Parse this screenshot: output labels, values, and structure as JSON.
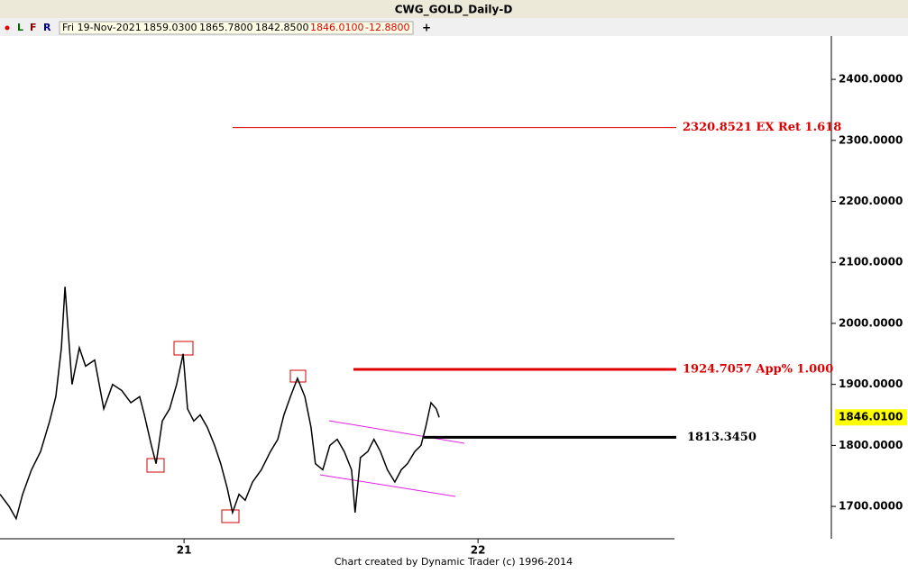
{
  "chart_data": {
    "type": "line",
    "title": "CWG_GOLD_Daily-D",
    "info": {
      "date": "Fri 19-Nov-2021",
      "open": "1859.0300",
      "high": "1865.7800",
      "low": "1842.8500",
      "close": "1846.0100",
      "change": "-12.8800",
      "buttons": [
        "L",
        "F",
        "R"
      ]
    },
    "footer": "Chart created by Dynamic Trader  (c) 1996-2014",
    "x": [
      2020.374,
      2020.405,
      2020.429,
      2020.451,
      2020.481,
      2020.512,
      2020.543,
      2020.564,
      2020.583,
      2020.595,
      2020.607,
      2020.619,
      2020.644,
      2020.665,
      2020.696,
      2020.727,
      2020.757,
      2020.788,
      2020.819,
      2020.849,
      2020.865,
      2020.889,
      2020.905,
      2020.926,
      2020.951,
      2020.975,
      2020.997,
      2021.012,
      2021.033,
      2021.055,
      2021.079,
      2021.104,
      2021.125,
      2021.147,
      2021.165,
      2021.187,
      2021.208,
      2021.233,
      2021.263,
      2021.294,
      2021.319,
      2021.34,
      2021.362,
      2021.386,
      2021.411,
      2021.432,
      2021.447,
      2021.472,
      2021.496,
      2021.521,
      2021.545,
      2021.57,
      2021.582,
      2021.6,
      2021.625,
      2021.646,
      2021.668,
      2021.692,
      2021.717,
      2021.739,
      2021.76,
      2021.785,
      2021.806,
      2021.822,
      2021.84,
      2021.858,
      2021.868
    ],
    "series": [
      {
        "name": "CWG_GOLD",
        "color": "#000000",
        "values": [
          1720,
          1700,
          1680,
          1720,
          1760,
          1790,
          1840,
          1880,
          1960,
          2060,
          1980,
          1900,
          1960,
          1930,
          1940,
          1860,
          1900,
          1890,
          1870,
          1880,
          1850,
          1800,
          1770,
          1840,
          1860,
          1900,
          1950,
          1860,
          1840,
          1850,
          1830,
          1800,
          1770,
          1730,
          1690,
          1720,
          1710,
          1740,
          1760,
          1790,
          1810,
          1850,
          1880,
          1910,
          1880,
          1830,
          1770,
          1760,
          1800,
          1810,
          1790,
          1760,
          1690,
          1780,
          1790,
          1810,
          1790,
          1760,
          1740,
          1760,
          1770,
          1790,
          1800,
          1830,
          1870,
          1860,
          1846.01
        ]
      }
    ],
    "levels": [
      {
        "value": 2320.8521,
        "label": "2320.8521 EX Ret 1.618",
        "color": "#e00000"
      },
      {
        "value": 1924.7057,
        "label": "1924.7057 App% 1.000",
        "color": "#e00000"
      },
      {
        "value": 1813.345,
        "label": "1813.3450",
        "color": "#000000"
      }
    ],
    "last_price": {
      "value": 1846.01,
      "label": "1846.0100"
    },
    "xlim": [
      2020.374,
      2023.202
    ],
    "xticks": [
      {
        "value": 2021,
        "label": "21"
      },
      {
        "value": 2022,
        "label": "22"
      }
    ],
    "ylim": [
      1647,
      2471
    ],
    "yticks": [
      {
        "value": 1700,
        "label": "1700.0000"
      },
      {
        "value": 1800,
        "label": "1800.0000"
      },
      {
        "value": 1900,
        "label": "1900.0000"
      },
      {
        "value": 2000,
        "label": "2000.0000"
      },
      {
        "value": 2100,
        "label": "2100.0000"
      },
      {
        "value": 2200,
        "label": "2200.0000"
      },
      {
        "value": 2300,
        "label": "2300.0000"
      },
      {
        "value": 2400,
        "label": "2400.0000"
      }
    ]
  }
}
